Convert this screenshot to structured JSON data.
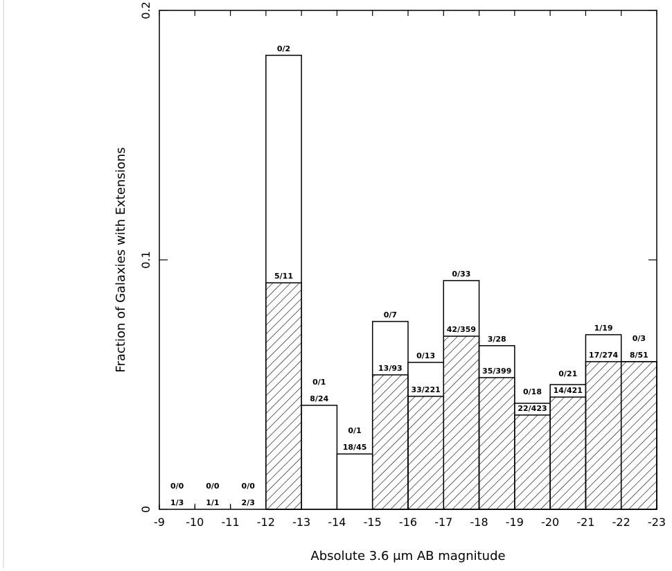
{
  "chart_data": {
    "type": "histogram",
    "xlabel": "Absolute 3.6 μm AB magnitude",
    "ylabel": "Fraction of Galaxies with Extensions",
    "bins": [
      -9,
      -10,
      -11,
      -12,
      -13,
      -14,
      -15,
      -16,
      -17,
      -18,
      -19,
      -20,
      -21,
      -22,
      -23
    ],
    "series": [
      {
        "color": "#000000",
        "hatch": false,
        "values": [
          0,
          0,
          0,
          0.182,
          0.0417,
          0.0222,
          0.0753,
          0.0589,
          0.0917,
          0.0656,
          0.0425,
          0.05,
          0.07,
          0.0592
        ],
        "annotations": [
          "0/0",
          "0/0",
          "0/0",
          "0/2",
          "0/1",
          "0/1",
          "0/7",
          "0/13",
          "0/33",
          "3/28",
          "0/18",
          "0/21",
          "1/19",
          "0/3"
        ]
      },
      {
        "color": "#000000",
        "hatch": true,
        "values": [
          0,
          0,
          0,
          0.0908,
          0,
          0,
          0.0539,
          0.0453,
          0.0694,
          0.0528,
          0.0378,
          0.045,
          0.0592,
          0.0592
        ],
        "annotations": [
          "1/3",
          "1/1",
          "2/3",
          "5/11",
          "8/24",
          "18/45",
          "13/93",
          "33/221",
          "42/359",
          "35/399",
          "22/423",
          "14/421",
          "17/274",
          "8/51"
        ]
      }
    ],
    "xlim": [
      -9,
      -23
    ],
    "ylim": [
      0,
      0.2
    ],
    "xticks": [
      -9,
      -10,
      -11,
      -12,
      -13,
      -14,
      -15,
      -16,
      -17,
      -18,
      -19,
      -20,
      -21,
      -22,
      -23
    ],
    "yticks": [
      0,
      0.1,
      0.2
    ]
  }
}
